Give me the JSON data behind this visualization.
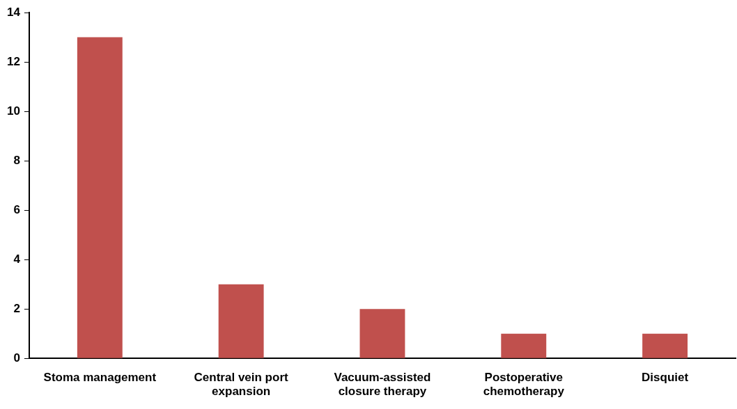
{
  "chart_data": {
    "type": "bar",
    "categories": [
      "Stoma management",
      "Central vein port expansion",
      "Vacuum-assisted closure therapy",
      "Postoperative chemotherapy",
      "Disquiet"
    ],
    "values": [
      13,
      3,
      2,
      1,
      1
    ],
    "color": "#c0504d",
    "ylim": [
      0,
      14
    ],
    "yticks": [
      0,
      2,
      4,
      6,
      8,
      10,
      12,
      14
    ]
  }
}
